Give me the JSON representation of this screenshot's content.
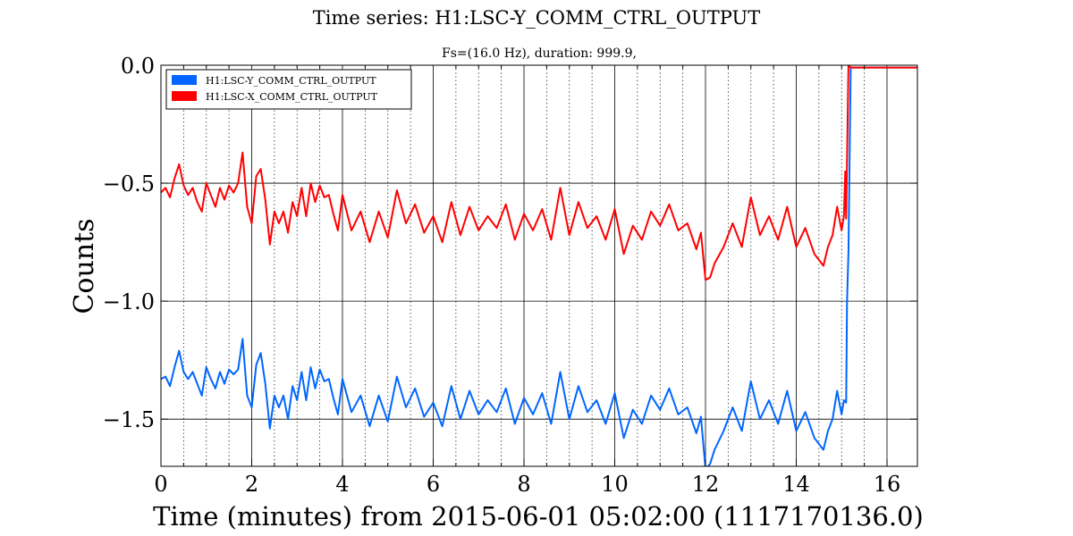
{
  "chart_data": {
    "type": "line",
    "title": "Time series:  H1:LSC-Y_COMM_CTRL_OUTPUT",
    "subtitle": "Fs=(16.0 Hz), duration: 999.9,",
    "xlabel": "Time (minutes) from 2015-06-01 05:02:00 (1117170136.0)",
    "ylabel": "Counts",
    "xlim": [
      0,
      16.67
    ],
    "ylim": [
      -1.7,
      0.0
    ],
    "x_major_ticks": [
      0,
      2,
      4,
      6,
      8,
      10,
      12,
      14,
      16
    ],
    "x_tick_labels": [
      "0",
      "2",
      "4",
      "6",
      "8",
      "10",
      "12",
      "14",
      "16"
    ],
    "x_minor_ticks": [
      0.5,
      1,
      1.5,
      2.5,
      3,
      3.5,
      4.5,
      5,
      5.5,
      6.5,
      7,
      7.5,
      8.5,
      9,
      9.5,
      10.5,
      11,
      11.5,
      12.5,
      13,
      13.5,
      14.5,
      15,
      15.5
    ],
    "y_major_ticks": [
      0.0,
      -0.5,
      -1.0,
      -1.5
    ],
    "y_tick_labels": [
      "0.0",
      "−0.5",
      "−1.0",
      "−1.5"
    ],
    "grid": true,
    "legend_position": "top-left",
    "series": [
      {
        "name": "H1:LSC-Y_COMM_CTRL_OUTPUT",
        "color": "#0066ff",
        "x": [
          0,
          0.1,
          0.2,
          0.3,
          0.4,
          0.5,
          0.6,
          0.7,
          0.8,
          0.9,
          1.0,
          1.1,
          1.2,
          1.3,
          1.4,
          1.5,
          1.6,
          1.7,
          1.8,
          1.9,
          2.0,
          2.1,
          2.2,
          2.3,
          2.4,
          2.5,
          2.6,
          2.7,
          2.8,
          2.9,
          3.0,
          3.1,
          3.2,
          3.3,
          3.4,
          3.5,
          3.6,
          3.7,
          3.8,
          3.9,
          4.0,
          4.2,
          4.4,
          4.6,
          4.8,
          5.0,
          5.2,
          5.4,
          5.6,
          5.8,
          6.0,
          6.2,
          6.4,
          6.6,
          6.8,
          7.0,
          7.2,
          7.4,
          7.6,
          7.8,
          8.0,
          8.2,
          8.4,
          8.6,
          8.8,
          9.0,
          9.2,
          9.4,
          9.6,
          9.8,
          10.0,
          10.2,
          10.4,
          10.6,
          10.8,
          11.0,
          11.2,
          11.4,
          11.6,
          11.8,
          11.9,
          12.0,
          12.1,
          12.2,
          12.4,
          12.6,
          12.8,
          13.0,
          13.2,
          13.4,
          13.6,
          13.8,
          14.0,
          14.2,
          14.4,
          14.6,
          14.7,
          14.8,
          14.9,
          15.0,
          15.05,
          15.1,
          15.12,
          15.15,
          15.2,
          15.4,
          15.6,
          15.8,
          16.0,
          16.2,
          16.4,
          16.67
        ],
        "y": [
          -1.33,
          -1.32,
          -1.36,
          -1.28,
          -1.21,
          -1.3,
          -1.33,
          -1.3,
          -1.35,
          -1.4,
          -1.28,
          -1.33,
          -1.37,
          -1.3,
          -1.35,
          -1.29,
          -1.31,
          -1.29,
          -1.16,
          -1.4,
          -1.45,
          -1.27,
          -1.22,
          -1.35,
          -1.54,
          -1.4,
          -1.45,
          -1.4,
          -1.5,
          -1.36,
          -1.42,
          -1.3,
          -1.42,
          -1.28,
          -1.37,
          -1.29,
          -1.34,
          -1.33,
          -1.41,
          -1.48,
          -1.33,
          -1.47,
          -1.4,
          -1.53,
          -1.4,
          -1.51,
          -1.32,
          -1.45,
          -1.37,
          -1.49,
          -1.43,
          -1.53,
          -1.36,
          -1.5,
          -1.38,
          -1.48,
          -1.42,
          -1.47,
          -1.37,
          -1.52,
          -1.41,
          -1.48,
          -1.39,
          -1.52,
          -1.3,
          -1.5,
          -1.36,
          -1.47,
          -1.42,
          -1.52,
          -1.39,
          -1.58,
          -1.46,
          -1.52,
          -1.4,
          -1.46,
          -1.37,
          -1.48,
          -1.45,
          -1.56,
          -1.49,
          -1.71,
          -1.69,
          -1.63,
          -1.55,
          -1.45,
          -1.55,
          -1.34,
          -1.5,
          -1.42,
          -1.52,
          -1.38,
          -1.55,
          -1.47,
          -1.58,
          -1.63,
          -1.55,
          -1.5,
          -1.38,
          -1.48,
          -1.42,
          -1.43,
          -1.0,
          -0.79,
          -0.01,
          -0.01,
          -0.01,
          -0.01,
          -0.01,
          -0.01,
          -0.01,
          -0.01
        ]
      },
      {
        "name": "H1:LSC-X_COMM_CTRL_OUTPUT",
        "color": "#ff0000",
        "x": [
          0,
          0.1,
          0.2,
          0.3,
          0.4,
          0.5,
          0.6,
          0.7,
          0.8,
          0.9,
          1.0,
          1.1,
          1.2,
          1.3,
          1.4,
          1.5,
          1.6,
          1.7,
          1.8,
          1.9,
          2.0,
          2.1,
          2.2,
          2.3,
          2.4,
          2.5,
          2.6,
          2.7,
          2.8,
          2.9,
          3.0,
          3.1,
          3.2,
          3.3,
          3.4,
          3.5,
          3.6,
          3.7,
          3.8,
          3.9,
          4.0,
          4.2,
          4.4,
          4.6,
          4.8,
          5.0,
          5.2,
          5.4,
          5.6,
          5.8,
          6.0,
          6.2,
          6.4,
          6.6,
          6.8,
          7.0,
          7.2,
          7.4,
          7.6,
          7.8,
          8.0,
          8.2,
          8.4,
          8.6,
          8.8,
          9.0,
          9.2,
          9.4,
          9.6,
          9.8,
          10.0,
          10.2,
          10.4,
          10.6,
          10.8,
          11.0,
          11.2,
          11.4,
          11.6,
          11.8,
          11.9,
          12.0,
          12.1,
          12.2,
          12.4,
          12.6,
          12.8,
          13.0,
          13.2,
          13.4,
          13.6,
          13.8,
          14.0,
          14.2,
          14.4,
          14.6,
          14.7,
          14.8,
          14.9,
          15.0,
          15.05,
          15.08,
          15.1,
          15.15,
          15.2,
          15.4,
          15.6,
          15.8,
          16.0,
          16.2,
          16.4,
          16.67
        ],
        "y": [
          -0.54,
          -0.52,
          -0.56,
          -0.48,
          -0.42,
          -0.51,
          -0.55,
          -0.52,
          -0.58,
          -0.62,
          -0.5,
          -0.55,
          -0.6,
          -0.52,
          -0.57,
          -0.51,
          -0.54,
          -0.5,
          -0.37,
          -0.6,
          -0.67,
          -0.47,
          -0.44,
          -0.57,
          -0.76,
          -0.62,
          -0.67,
          -0.62,
          -0.71,
          -0.58,
          -0.64,
          -0.52,
          -0.64,
          -0.5,
          -0.58,
          -0.51,
          -0.56,
          -0.55,
          -0.63,
          -0.7,
          -0.55,
          -0.7,
          -0.62,
          -0.75,
          -0.62,
          -0.73,
          -0.53,
          -0.67,
          -0.59,
          -0.71,
          -0.64,
          -0.75,
          -0.58,
          -0.72,
          -0.6,
          -0.7,
          -0.64,
          -0.69,
          -0.59,
          -0.74,
          -0.63,
          -0.7,
          -0.61,
          -0.74,
          -0.52,
          -0.72,
          -0.58,
          -0.69,
          -0.64,
          -0.74,
          -0.61,
          -0.8,
          -0.68,
          -0.74,
          -0.62,
          -0.68,
          -0.59,
          -0.7,
          -0.67,
          -0.78,
          -0.71,
          -0.91,
          -0.9,
          -0.84,
          -0.77,
          -0.67,
          -0.77,
          -0.56,
          -0.72,
          -0.64,
          -0.74,
          -0.6,
          -0.77,
          -0.69,
          -0.8,
          -0.85,
          -0.77,
          -0.72,
          -0.6,
          -0.7,
          -0.64,
          -0.45,
          -0.65,
          0.0,
          -0.01,
          -0.01,
          -0.01,
          -0.01,
          -0.01,
          -0.01,
          -0.01,
          -0.01
        ]
      }
    ]
  }
}
